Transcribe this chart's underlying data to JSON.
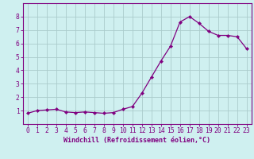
{
  "x": [
    0,
    1,
    2,
    3,
    4,
    5,
    6,
    7,
    8,
    9,
    10,
    11,
    12,
    13,
    14,
    15,
    16,
    17,
    18,
    19,
    20,
    21,
    22,
    23
  ],
  "y": [
    0.8,
    1.0,
    1.05,
    1.1,
    0.9,
    0.85,
    0.9,
    0.85,
    0.8,
    0.85,
    1.1,
    1.3,
    2.3,
    3.5,
    4.7,
    5.8,
    7.6,
    8.0,
    7.5,
    6.9,
    6.6,
    6.6,
    6.5,
    5.6
  ],
  "line_color": "#800080",
  "marker": "D",
  "marker_size": 2.2,
  "bg_color": "#cff0f0",
  "grid_color": "#aacccc",
  "xlabel": "Windchill (Refroidissement éolien,°C)",
  "xlim": [
    -0.5,
    23.5
  ],
  "ylim": [
    0,
    9
  ],
  "yticks": [
    1,
    2,
    3,
    4,
    5,
    6,
    7,
    8
  ],
  "xticks": [
    0,
    1,
    2,
    3,
    4,
    5,
    6,
    7,
    8,
    9,
    10,
    11,
    12,
    13,
    14,
    15,
    16,
    17,
    18,
    19,
    20,
    21,
    22,
    23
  ],
  "spine_color": "#800080",
  "tick_color": "#800080",
  "label_color": "#800080",
  "label_fontsize": 6.0,
  "tick_fontsize": 5.8,
  "linewidth": 0.9
}
